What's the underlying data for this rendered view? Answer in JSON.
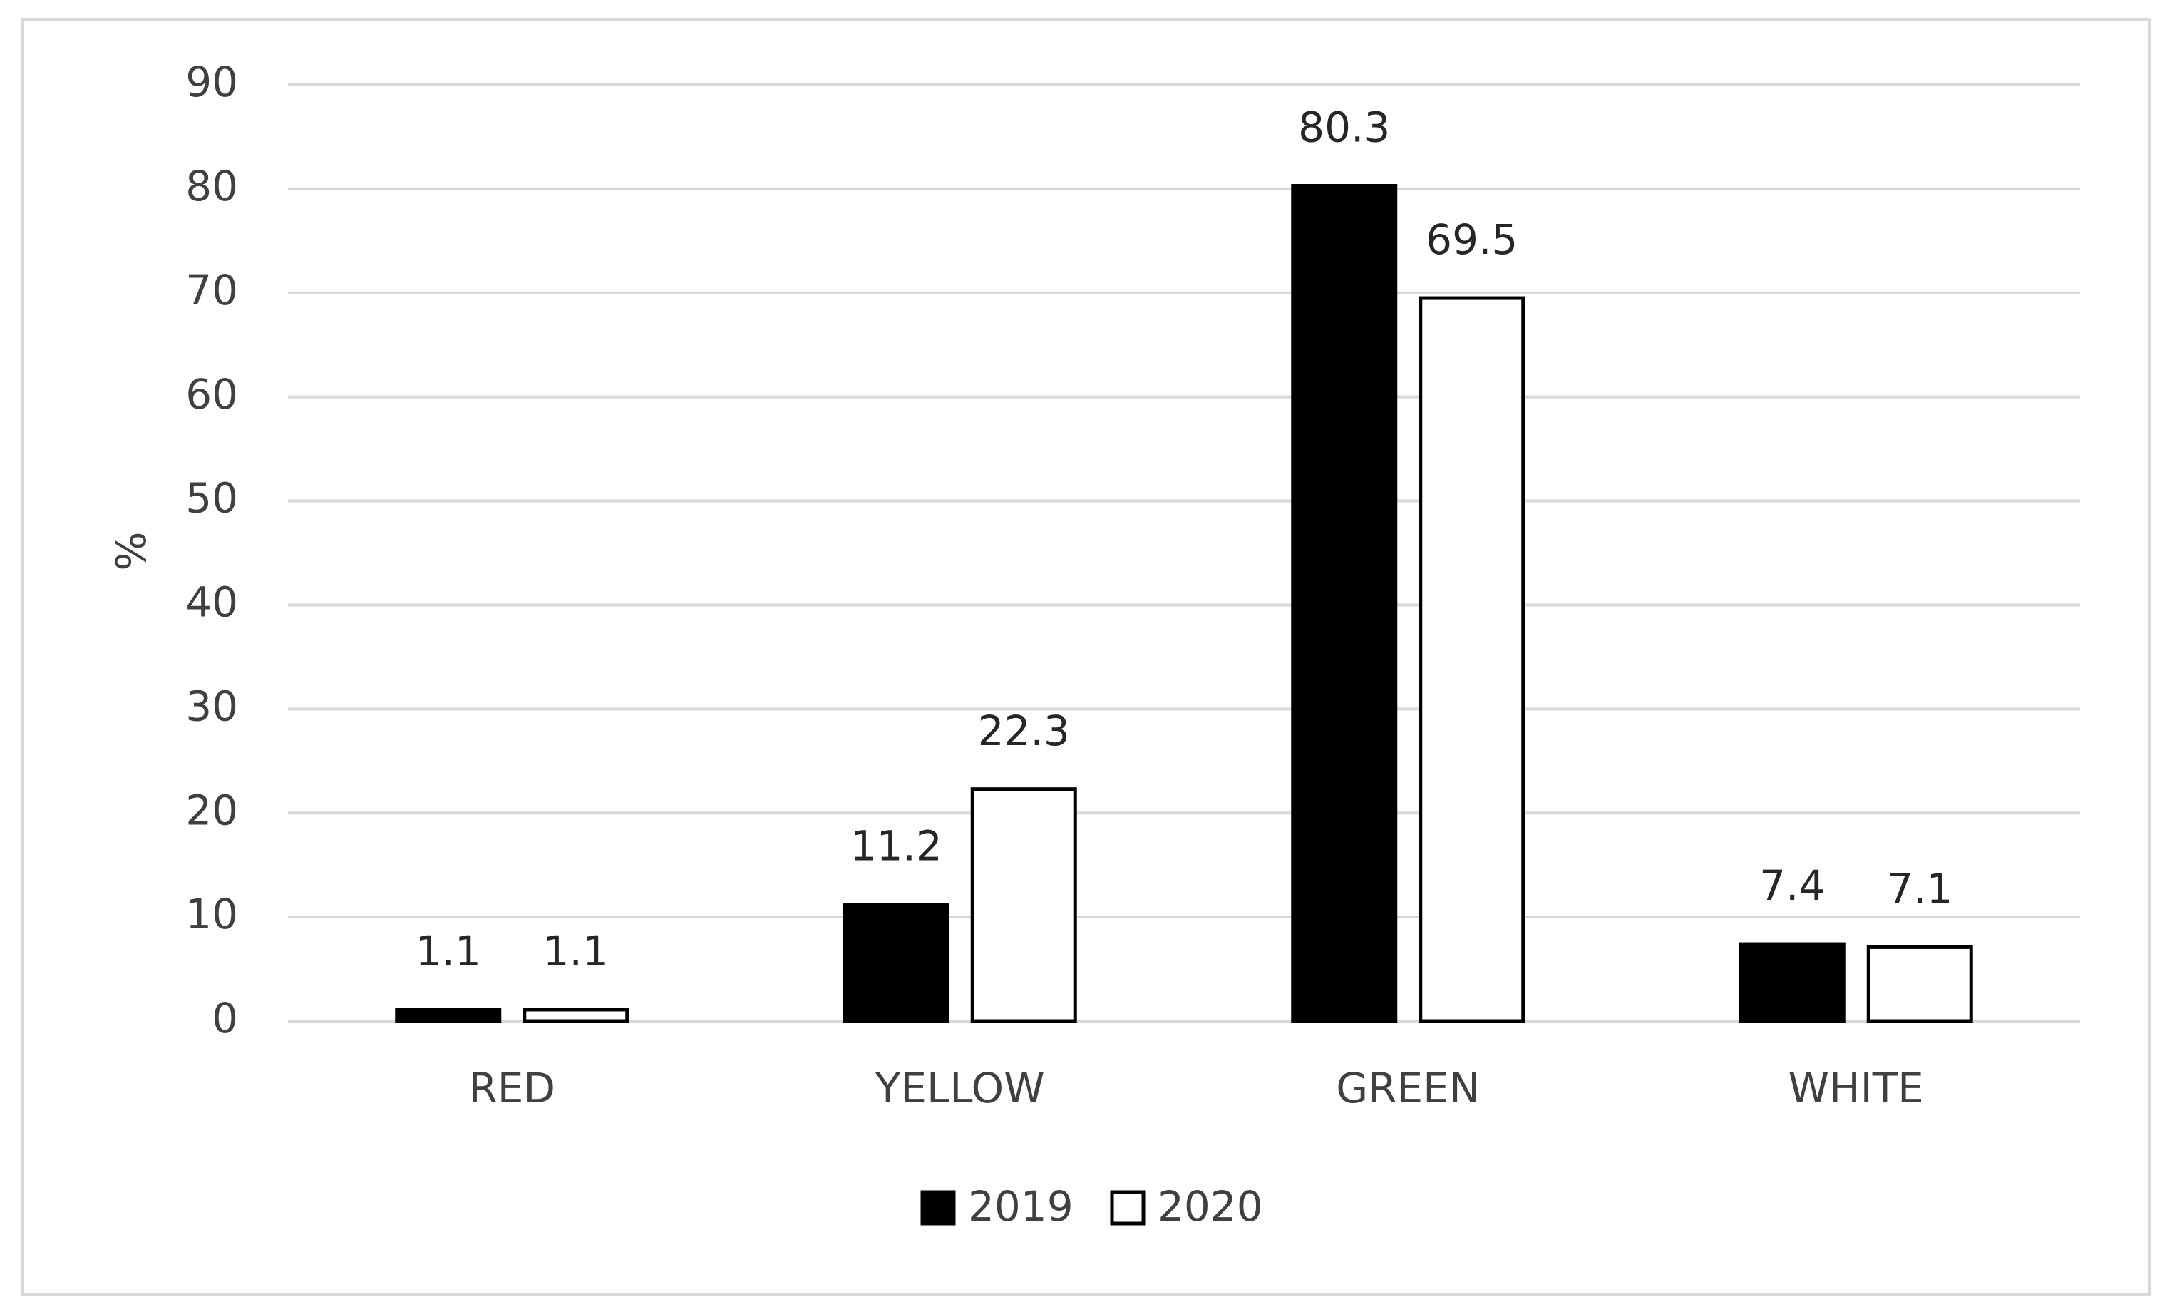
{
  "chart_data": {
    "type": "bar",
    "y_label": "%",
    "categories": [
      "RED",
      "YELLOW",
      "GREEN",
      "WHITE"
    ],
    "series": [
      {
        "name": "2019",
        "color": "#000000",
        "values": [
          1.1,
          11.2,
          80.3,
          7.4
        ]
      },
      {
        "name": "2020",
        "color": "#ffffff",
        "values": [
          1.1,
          22.3,
          69.5,
          7.1
        ]
      }
    ],
    "ylim": [
      0,
      90
    ],
    "yticks": [
      0,
      10,
      20,
      30,
      40,
      50,
      60,
      70,
      80,
      90
    ],
    "grid": true,
    "legend": "bottom"
  }
}
